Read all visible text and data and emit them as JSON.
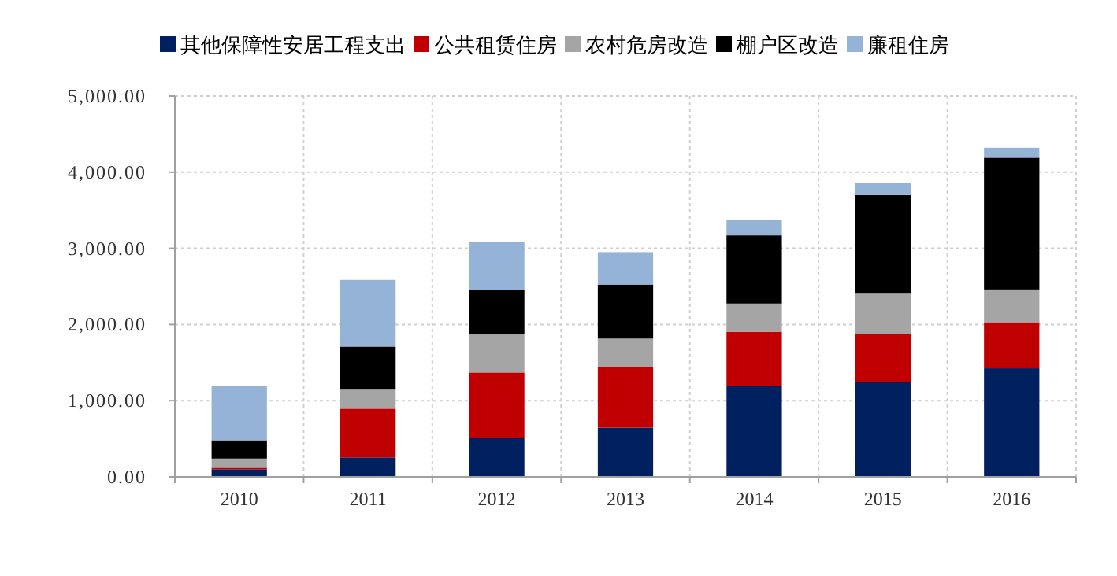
{
  "chart_data": {
    "type": "bar",
    "stacked": true,
    "categories": [
      "2010",
      "2011",
      "2012",
      "2013",
      "2014",
      "2015",
      "2016"
    ],
    "series": [
      {
        "name": "其他保障性安居工程支出",
        "color": "#002060",
        "values": [
          100,
          255,
          510,
          645,
          1190,
          1240,
          1425
        ]
      },
      {
        "name": "公共租赁住房",
        "color": "#c00000",
        "values": [
          20,
          640,
          860,
          795,
          715,
          635,
          605
        ]
      },
      {
        "name": "农村危房改造",
        "color": "#a5a5a5",
        "values": [
          120,
          260,
          500,
          375,
          370,
          540,
          430
        ]
      },
      {
        "name": "棚户区改造",
        "color": "#000000",
        "values": [
          240,
          555,
          580,
          710,
          895,
          1285,
          1730
        ]
      },
      {
        "name": "廉租住房",
        "color": "#95b3d7",
        "values": [
          710,
          875,
          630,
          425,
          205,
          160,
          130
        ]
      }
    ],
    "ylim": [
      0,
      5000
    ],
    "yticks": [
      {
        "value": 0,
        "label": "0.00"
      },
      {
        "value": 1000,
        "label": "1,000.00"
      },
      {
        "value": 2000,
        "label": "2,000.00"
      },
      {
        "value": 3000,
        "label": "3,000.00"
      },
      {
        "value": 4000,
        "label": "4,000.00"
      },
      {
        "value": 5000,
        "label": "5,000.00"
      }
    ],
    "grid": true,
    "legend": "top"
  }
}
